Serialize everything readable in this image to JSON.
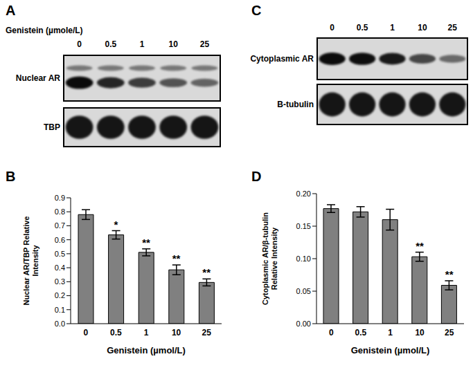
{
  "blots": [
    {
      "panel": "A",
      "header": "Genistein (µmole/L)",
      "lanes": [
        "0",
        "0.5",
        "1",
        "10",
        "25"
      ],
      "rows": [
        {
          "label": "Nuclear AR"
        },
        {
          "label": "TBP"
        }
      ]
    },
    {
      "panel": "C",
      "lanes": [
        "0",
        "0.5",
        "1",
        "10",
        "25"
      ],
      "rows": [
        {
          "label": "Cytoplasmic AR"
        },
        {
          "label": "B-tubulin"
        }
      ]
    }
  ],
  "chart_data": [
    {
      "panel": "B",
      "type": "bar",
      "categories": [
        "0",
        "0.5",
        "1",
        "10",
        "25"
      ],
      "values": [
        0.78,
        0.635,
        0.51,
        0.385,
        0.295
      ],
      "errors": [
        0.035,
        0.03,
        0.025,
        0.035,
        0.025
      ],
      "significance": [
        null,
        "*",
        "**",
        "**",
        "**"
      ],
      "ylabel": [
        "Nuclear AR/TBP Relative",
        "Intensity"
      ],
      "xlabel": "Genistein (µmol/L)",
      "ylim": [
        0,
        0.9
      ],
      "yticks": [
        {
          "value": 0,
          "label": "0.0"
        },
        0.1,
        0.2,
        0.3,
        0.4,
        0.5,
        0.6,
        0.7,
        0.8,
        0.9
      ],
      "color": "#808080"
    },
    {
      "panel": "D",
      "type": "bar",
      "categories": [
        "0",
        "0.5",
        "1",
        "10",
        "25"
      ],
      "values": [
        0.177,
        0.172,
        0.16,
        0.103,
        0.059
      ],
      "errors": [
        0.006,
        0.008,
        0.016,
        0.007,
        0.007
      ],
      "significance": [
        null,
        null,
        null,
        "**",
        "**"
      ],
      "ylabel": [
        "Cytoplasmic AR/β-tubulin",
        "Relative Intensity"
      ],
      "xlabel": "Genistein (µmol/L)",
      "ylim": [
        0,
        0.2
      ],
      "yticks": [
        {
          "value": 0,
          "label": "0.00"
        },
        {
          "value": 0.05,
          "label": "0.05"
        },
        {
          "value": 0.1,
          "label": "0.10"
        },
        {
          "value": 0.15,
          "label": "0.15"
        },
        {
          "value": 0.2,
          "label": "0.20"
        }
      ],
      "color": "#808080"
    }
  ]
}
